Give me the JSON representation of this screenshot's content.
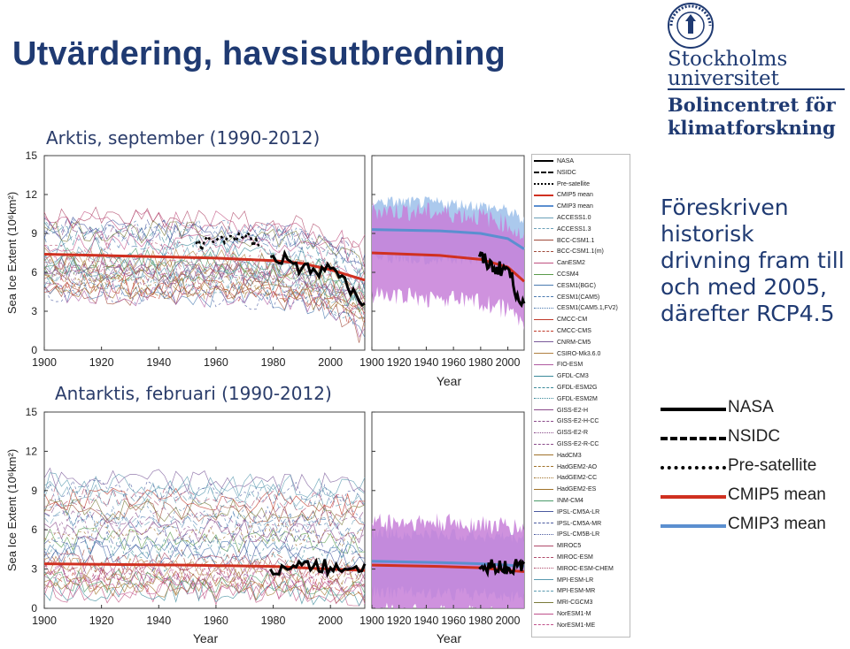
{
  "slide": {
    "title": "Utvärdering, havsisutbredning",
    "arctic_label": "Arktis, september (1990-2012)",
    "antarctic_label": "Antarktis, februari (1990-2012)",
    "side_text": "Föreskriven historisk drivning fram till och med 2005, därefter RCP4.5"
  },
  "logo": {
    "university": "Stockholms universitet",
    "university_line1": "Stockholms",
    "university_line2": "universitet",
    "centre_line1": "Bolincentret för",
    "centre_line2": "klimatforskning"
  },
  "axes": {
    "y_label": "Sea Ice Extent (10⁶km²)",
    "x_label": "Year",
    "y_ticks": [
      "0",
      "3",
      "6",
      "9",
      "12",
      "15"
    ],
    "x_ticks_left": [
      "1900",
      "1920",
      "1940",
      "1960",
      "1980",
      "2000"
    ],
    "x_ticks_right": [
      "1900",
      "1920",
      "1940",
      "1960",
      "1980",
      "2000"
    ]
  },
  "colors": {
    "title": "#1f3a72",
    "nasa": "#000000",
    "cmip5": "#d03020",
    "cmip3": "#5b8fd0",
    "cmip5_band": "#c77fd8",
    "cmip3_band": "#9cc0ea"
  },
  "legend_models": [
    {
      "name": "NASA",
      "color": "#000000",
      "style": "solid",
      "width": 2.5
    },
    {
      "name": "NSIDC",
      "color": "#000000",
      "style": "dash",
      "width": 2.5
    },
    {
      "name": "Pre-satellite",
      "color": "#000000",
      "style": "dot",
      "width": 2
    },
    {
      "name": "CMIP5 mean",
      "color": "#d03020",
      "style": "solid",
      "width": 2.5
    },
    {
      "name": "CMIP3 mean",
      "color": "#5b8fd0",
      "style": "solid",
      "width": 2.5
    },
    {
      "name": "ACCESS1.0",
      "color": "#6aa0b8",
      "style": "solid",
      "width": 1
    },
    {
      "name": "ACCESS1.3",
      "color": "#6aa0b8",
      "style": "dash",
      "width": 1
    },
    {
      "name": "BCC-CSM1.1",
      "color": "#a04a3a",
      "style": "solid",
      "width": 1
    },
    {
      "name": "BCC-CSM1.1(m)",
      "color": "#a04a3a",
      "style": "dash",
      "width": 1
    },
    {
      "name": "CanESM2",
      "color": "#c05080",
      "style": "solid",
      "width": 1
    },
    {
      "name": "CCSM4",
      "color": "#5a9a4a",
      "style": "solid",
      "width": 1
    },
    {
      "name": "CESM1(BGC)",
      "color": "#4a7ab0",
      "style": "solid",
      "width": 1
    },
    {
      "name": "CESM1(CAM5)",
      "color": "#4a7ab0",
      "style": "dash",
      "width": 1
    },
    {
      "name": "CESM1(CAM5.1,FV2)",
      "color": "#4a7ab0",
      "style": "dot",
      "width": 1
    },
    {
      "name": "CMCC-CM",
      "color": "#c03a2a",
      "style": "solid",
      "width": 1
    },
    {
      "name": "CMCC-CMS",
      "color": "#c03a2a",
      "style": "dash",
      "width": 1
    },
    {
      "name": "CNRM-CM5",
      "color": "#7a5a9a",
      "style": "solid",
      "width": 1
    },
    {
      "name": "CSIRO-Mk3.6.0",
      "color": "#b08040",
      "style": "solid",
      "width": 1
    },
    {
      "name": "FIO-ESM",
      "color": "#b05aa0",
      "style": "solid",
      "width": 1
    },
    {
      "name": "GFDL-CM3",
      "color": "#3a8a9a",
      "style": "solid",
      "width": 1
    },
    {
      "name": "GFDL-ESM2G",
      "color": "#3a8a9a",
      "style": "dash",
      "width": 1
    },
    {
      "name": "GFDL-ESM2M",
      "color": "#3a8a9a",
      "style": "dot",
      "width": 1
    },
    {
      "name": "GISS-E2-H",
      "color": "#8a4a8a",
      "style": "solid",
      "width": 1
    },
    {
      "name": "GISS-E2-H-CC",
      "color": "#8a4a8a",
      "style": "dash",
      "width": 1
    },
    {
      "name": "GISS-E2-R",
      "color": "#8a4a8a",
      "style": "dot",
      "width": 1
    },
    {
      "name": "GISS-E2-R-CC",
      "color": "#8a4a8a",
      "style": "dash",
      "width": 1
    },
    {
      "name": "HadCM3",
      "color": "#a0722a",
      "style": "solid",
      "width": 1
    },
    {
      "name": "HadGEM2-AO",
      "color": "#a0722a",
      "style": "dash",
      "width": 1
    },
    {
      "name": "HadGEM2-CC",
      "color": "#a0722a",
      "style": "dot",
      "width": 1
    },
    {
      "name": "HadGEM2-ES",
      "color": "#a0722a",
      "style": "solid",
      "width": 1
    },
    {
      "name": "INM-CM4",
      "color": "#4a9a6a",
      "style": "solid",
      "width": 1
    },
    {
      "name": "IPSL-CM5A-LR",
      "color": "#4a5aa0",
      "style": "solid",
      "width": 1
    },
    {
      "name": "IPSL-CM5A-MR",
      "color": "#4a5aa0",
      "style": "dash",
      "width": 1
    },
    {
      "name": "IPSL-CM5B-LR",
      "color": "#4a5aa0",
      "style": "dot",
      "width": 1
    },
    {
      "name": "MIROC5",
      "color": "#b04a6a",
      "style": "solid",
      "width": 1
    },
    {
      "name": "MIROC-ESM",
      "color": "#b04a6a",
      "style": "dash",
      "width": 1
    },
    {
      "name": "MIROC-ESM-CHEM",
      "color": "#b04a6a",
      "style": "dot",
      "width": 1
    },
    {
      "name": "MPI-ESM-LR",
      "color": "#5a9ab0",
      "style": "solid",
      "width": 1
    },
    {
      "name": "MPI-ESM-MR",
      "color": "#5a9ab0",
      "style": "dash",
      "width": 1
    },
    {
      "name": "MRI-CGCM3",
      "color": "#7a7a3a",
      "style": "solid",
      "width": 1
    },
    {
      "name": "NorESM1-M",
      "color": "#c0508a",
      "style": "solid",
      "width": 1
    },
    {
      "name": "NorESM1-ME",
      "color": "#c0508a",
      "style": "dash",
      "width": 1
    }
  ],
  "big_legend": [
    {
      "name": "NASA",
      "color": "#000000",
      "style": "solid"
    },
    {
      "name": "NSIDC",
      "color": "#000000",
      "style": "dash"
    },
    {
      "name": "Pre-satellite",
      "color": "#000000",
      "style": "dot"
    },
    {
      "name": "CMIP5 mean",
      "color": "#d03020",
      "style": "solid"
    },
    {
      "name": "CMIP3 mean",
      "color": "#5b8fd0",
      "style": "solid"
    }
  ],
  "chart_data": [
    {
      "type": "line",
      "title": "Arktis, september (1990-2012)",
      "xlabel": "Year",
      "ylabel": "Sea Ice Extent (10⁶km²)",
      "xlim": [
        1900,
        2012
      ],
      "ylim": [
        0,
        15
      ],
      "grid": false,
      "series": [
        {
          "name": "CMIP5 mean",
          "x": [
            1900,
            1920,
            1940,
            1960,
            1980,
            1990,
            2000,
            2012
          ],
          "values": [
            7.4,
            7.3,
            7.2,
            7.1,
            6.9,
            6.7,
            6.2,
            5.4
          ]
        },
        {
          "name": "NASA",
          "x": [
            1979,
            1985,
            1990,
            1995,
            2000,
            2005,
            2007,
            2012
          ],
          "values": [
            7.2,
            7.0,
            6.3,
            6.0,
            6.3,
            5.6,
            4.3,
            3.6
          ]
        },
        {
          "name": "Pre-satellite",
          "x": [
            1953,
            1960,
            1965,
            1970,
            1975
          ],
          "values": [
            8.2,
            8.4,
            8.8,
            8.6,
            8.0
          ]
        }
      ]
    },
    {
      "type": "area",
      "title": "Arktis, september (1990-2012)",
      "xlabel": "Year",
      "xlim": [
        1900,
        2012
      ],
      "ylim": [
        0,
        15
      ],
      "series": [
        {
          "name": "CMIP5 mean",
          "x": [
            1900,
            1950,
            1980,
            2000,
            2012
          ],
          "values": [
            7.5,
            7.3,
            7.0,
            6.4,
            5.3
          ]
        },
        {
          "name": "CMIP3 mean",
          "x": [
            1900,
            1950,
            1980,
            2000,
            2012
          ],
          "values": [
            9.3,
            9.2,
            9.0,
            8.6,
            7.8
          ]
        },
        {
          "name": "NASA",
          "x": [
            1979,
            1990,
            2000,
            2007,
            2012
          ],
          "values": [
            7.2,
            6.3,
            6.3,
            4.3,
            3.6
          ]
        }
      ]
    },
    {
      "type": "line",
      "title": "Antarktis, februari (1990-2012)",
      "xlabel": "Year",
      "ylabel": "Sea Ice Extent (10⁶km²)",
      "xlim": [
        1900,
        2012
      ],
      "ylim": [
        0,
        15
      ],
      "series": [
        {
          "name": "CMIP5 mean",
          "x": [
            1900,
            1950,
            1980,
            2000,
            2012
          ],
          "values": [
            3.4,
            3.3,
            3.2,
            3.0,
            2.9
          ]
        },
        {
          "name": "NASA",
          "x": [
            1979,
            1990,
            2000,
            2012
          ],
          "values": [
            3.0,
            3.3,
            3.1,
            3.4
          ]
        }
      ]
    },
    {
      "type": "area",
      "title": "Antarktis, februari (1990-2012)",
      "xlabel": "Year",
      "xlim": [
        1900,
        2012
      ],
      "ylim": [
        0,
        15
      ],
      "series": [
        {
          "name": "CMIP5 mean",
          "x": [
            1900,
            1950,
            1980,
            2000,
            2012
          ],
          "values": [
            3.3,
            3.2,
            3.1,
            2.9,
            2.8
          ]
        },
        {
          "name": "CMIP3 mean",
          "x": [
            1900,
            1950,
            1980,
            2000,
            2012
          ],
          "values": [
            3.6,
            3.5,
            3.4,
            3.3,
            3.2
          ]
        },
        {
          "name": "NASA",
          "x": [
            1979,
            1990,
            2000,
            2012
          ],
          "values": [
            3.0,
            3.3,
            3.1,
            3.4
          ]
        }
      ]
    }
  ]
}
